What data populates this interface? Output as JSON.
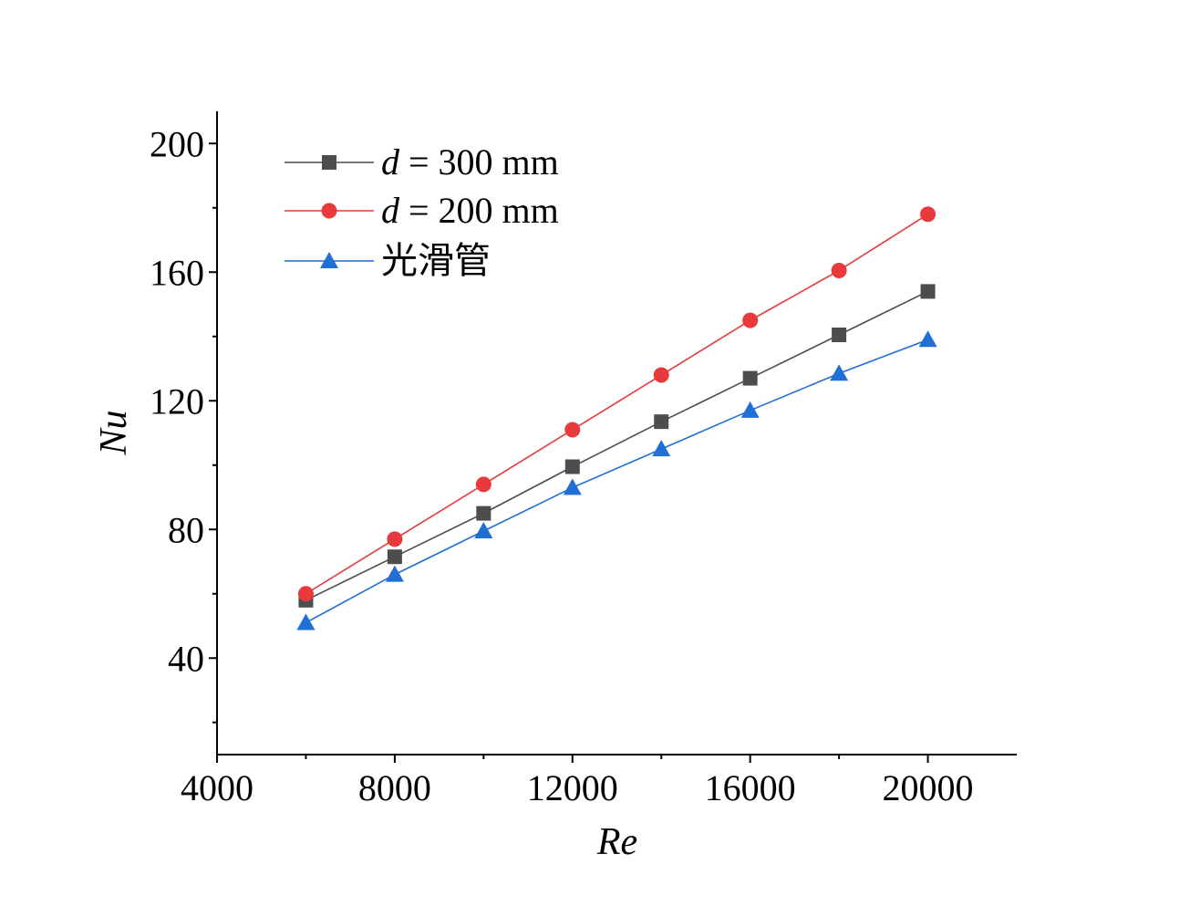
{
  "chart_data": {
    "type": "line",
    "title": "",
    "xlabel": "Re",
    "ylabel": "Nu",
    "xlim": [
      4000,
      22000
    ],
    "ylim": [
      10,
      210
    ],
    "xticks": [
      4000,
      8000,
      12000,
      16000,
      20000
    ],
    "yticks": [
      40,
      80,
      120,
      160,
      200
    ],
    "x": [
      6000,
      8000,
      10000,
      12000,
      14000,
      16000,
      18000,
      20000
    ],
    "grid": false,
    "legend_position": "top-left",
    "series": [
      {
        "name_prefix": "d",
        "name_suffix": " = 300 mm",
        "marker": "square",
        "color": "#4d4d4d",
        "values": [
          58,
          71.5,
          85,
          99.5,
          113.5,
          127,
          140.5,
          154
        ]
      },
      {
        "name_prefix": "d",
        "name_suffix": " = 200 mm",
        "marker": "circle",
        "color": "#e8393d",
        "values": [
          60,
          77,
          94,
          111,
          128,
          145,
          160.5,
          178
        ]
      },
      {
        "name_prefix": "",
        "name_suffix": "光滑管",
        "marker": "triangle",
        "color": "#1f6fd6",
        "values": [
          51,
          66,
          79.5,
          93,
          105,
          117,
          128.5,
          139
        ]
      }
    ]
  }
}
